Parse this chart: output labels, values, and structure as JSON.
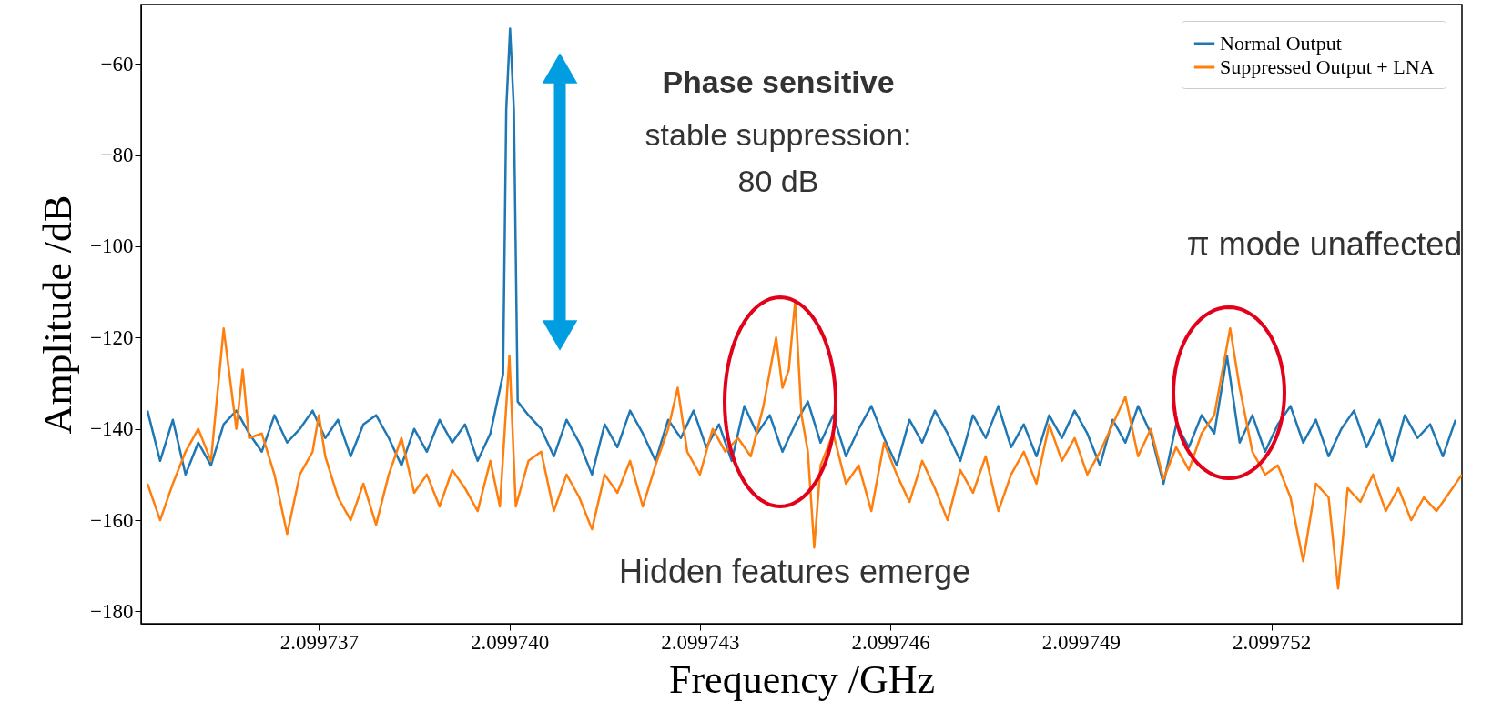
{
  "chart_data": {
    "type": "line",
    "xlabel": "Frequency /GHz",
    "ylabel": "Amplitude /dB",
    "xlim": [
      2.0997342,
      2.099755
    ],
    "ylim": [
      -182.7,
      -47
    ],
    "xticks": [
      2.099737,
      {
        "value": 2.09974,
        "label": "2.099740"
      },
      2.099743,
      2.099746,
      2.099749,
      2.099752
    ],
    "yticks": [
      -180,
      -160,
      -140,
      -120,
      -100,
      -80,
      -60
    ],
    "grid": false,
    "legend": "top right",
    "annotations": [
      "Phase sensitive",
      "stable suppression:",
      "80 dB",
      "π mode unaffected",
      "Hidden features emerge"
    ],
    "series": [
      {
        "name": "Normal Output",
        "color": "#1f77b4",
        "x": [
          2.0997343,
          2.0997345,
          2.0997347,
          2.0997349,
          2.0997351,
          2.0997353,
          2.0997355,
          2.0997357,
          2.0997359,
          2.0997361,
          2.0997363,
          2.0997365,
          2.0997367,
          2.0997369,
          2.0997371,
          2.0997373,
          2.0997375,
          2.0997377,
          2.0997379,
          2.0997381,
          2.0997383,
          2.0997385,
          2.0997387,
          2.0997389,
          2.0997391,
          2.0997393,
          2.0997395,
          2.0997397,
          2.0997399,
          2.09973995,
          2.09974001,
          2.09974007,
          2.09974013,
          2.0997403,
          2.0997405,
          2.0997407,
          2.0997409,
          2.0997411,
          2.0997413,
          2.0997415,
          2.0997417,
          2.0997419,
          2.0997421,
          2.0997423,
          2.0997425,
          2.0997427,
          2.0997429,
          2.0997431,
          2.0997433,
          2.0997435,
          2.0997437,
          2.0997439,
          2.0997441,
          2.0997443,
          2.0997445,
          2.0997447,
          2.0997449,
          2.0997451,
          2.0997453,
          2.0997455,
          2.0997457,
          2.0997459,
          2.0997461,
          2.0997463,
          2.0997465,
          2.0997467,
          2.0997469,
          2.0997471,
          2.0997473,
          2.0997475,
          2.0997477,
          2.0997479,
          2.0997481,
          2.0997483,
          2.0997485,
          2.0997487,
          2.0997489,
          2.0997491,
          2.0997493,
          2.0997495,
          2.0997497,
          2.0997499,
          2.0997501,
          2.0997503,
          2.0997505,
          2.0997507,
          2.0997509,
          2.0997511,
          2.0997513,
          2.0997515,
          2.0997517,
          2.0997519,
          2.0997521,
          2.0997523,
          2.0997525,
          2.0997527,
          2.0997529,
          2.0997531,
          2.0997533,
          2.0997535,
          2.0997537,
          2.0997539,
          2.0997541,
          2.0997543,
          2.0997545,
          2.0997547,
          2.0997549
        ],
        "values": [
          -136,
          -147,
          -138,
          -150,
          -143,
          -148,
          -139,
          -136,
          -141,
          -145,
          -137,
          -143,
          -140,
          -136,
          -142,
          -138,
          -146,
          -139,
          -137,
          -142,
          -148,
          -140,
          -145,
          -138,
          -143,
          -139,
          -147,
          -141,
          -128,
          -70,
          -52.3,
          -70,
          -134,
          -137,
          -140,
          -146,
          -138,
          -143,
          -150,
          -139,
          -144,
          -136,
          -141,
          -147,
          -138,
          -142,
          -136,
          -144,
          -139,
          -147,
          -135,
          -141,
          -137,
          -145,
          -139,
          -134,
          -143,
          -137,
          -146,
          -140,
          -135,
          -142,
          -148,
          -138,
          -143,
          -136,
          -141,
          -147,
          -137,
          -142,
          -135,
          -144,
          -139,
          -146,
          -137,
          -142,
          -136,
          -141,
          -148,
          -138,
          -143,
          -135,
          -141,
          -152,
          -139,
          -144,
          -137,
          -141,
          -124,
          -143,
          -137,
          -145,
          -139,
          -135,
          -143,
          -138,
          -146,
          -140,
          -136,
          -144,
          -138,
          -147,
          -137,
          -142,
          -139,
          -146,
          -138
        ]
      },
      {
        "name": "Suppressed Output + LNA",
        "color": "#ff7f0e",
        "x": [
          2.0997343,
          2.0997345,
          2.0997347,
          2.0997349,
          2.0997351,
          2.0997353,
          2.0997355,
          2.0997357,
          2.0997358,
          2.0997359,
          2.0997361,
          2.0997363,
          2.0997365,
          2.0997367,
          2.0997369,
          2.099737,
          2.0997371,
          2.0997373,
          2.0997375,
          2.0997377,
          2.0997379,
          2.0997381,
          2.0997383,
          2.0997385,
          2.0997387,
          2.0997389,
          2.0997391,
          2.0997393,
          2.0997395,
          2.0997397,
          2.09973985,
          2.09974,
          2.0997401,
          2.0997403,
          2.0997405,
          2.0997407,
          2.0997409,
          2.0997411,
          2.0997413,
          2.0997415,
          2.0997417,
          2.0997419,
          2.0997421,
          2.0997423,
          2.0997425,
          2.09974265,
          2.0997428,
          2.099743,
          2.0997432,
          2.0997434,
          2.0997436,
          2.0997438,
          2.099744,
          2.0997442,
          2.0997443,
          2.0997444,
          2.0997445,
          2.0997446,
          2.0997447,
          2.0997448,
          2.0997449,
          2.0997451,
          2.0997453,
          2.0997455,
          2.0997457,
          2.0997459,
          2.0997461,
          2.0997463,
          2.0997465,
          2.0997467,
          2.0997469,
          2.0997471,
          2.0997473,
          2.0997475,
          2.0997477,
          2.0997479,
          2.0997481,
          2.0997483,
          2.0997485,
          2.0997487,
          2.0997489,
          2.0997491,
          2.0997493,
          2.0997495,
          2.0997497,
          2.0997499,
          2.0997501,
          2.0997503,
          2.0997505,
          2.0997507,
          2.0997509,
          2.0997511,
          2.09975135,
          2.0997515,
          2.0997517,
          2.0997519,
          2.0997521,
          2.0997523,
          2.0997525,
          2.0997527,
          2.0997529,
          2.09975305,
          2.0997532,
          2.0997534,
          2.0997536,
          2.0997538,
          2.099754,
          2.0997542,
          2.0997544,
          2.0997546,
          2.0997548,
          2.099755
        ],
        "values": [
          -152,
          -160,
          -152,
          -145,
          -140,
          -147,
          -118,
          -140,
          -127,
          -142,
          -141,
          -150,
          -163,
          -150,
          -145,
          -137,
          -146,
          -155,
          -160,
          -152,
          -161,
          -150,
          -142,
          -154,
          -150,
          -157,
          -149,
          -153,
          -158,
          -147,
          -157,
          -124,
          -157,
          -147,
          -145,
          -158,
          -150,
          -155,
          -162,
          -150,
          -154,
          -147,
          -157,
          -148,
          -140,
          -131,
          -145,
          -150,
          -140,
          -145,
          -142,
          -146,
          -135,
          -120,
          -131,
          -127,
          -112,
          -137,
          -145,
          -166,
          -148,
          -141,
          -152,
          -148,
          -158,
          -143,
          -150,
          -156,
          -147,
          -153,
          -160,
          -149,
          -154,
          -146,
          -158,
          -150,
          -145,
          -152,
          -139,
          -147,
          -142,
          -150,
          -145,
          -139,
          -133,
          -146,
          -140,
          -151,
          -144,
          -149,
          -141,
          -137,
          -118,
          -131,
          -145,
          -150,
          -148,
          -155,
          -169,
          -152,
          -155,
          -175,
          -153,
          -156,
          -150,
          -158,
          -153,
          -160,
          -155,
          -158,
          -154,
          -150
        ]
      }
    ]
  }
}
